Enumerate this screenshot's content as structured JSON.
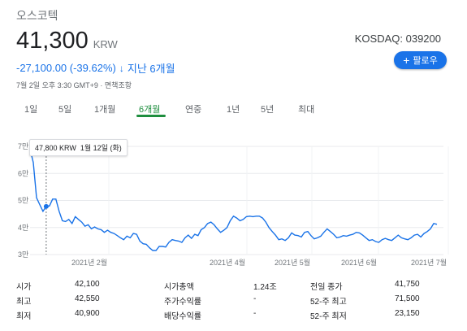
{
  "header": {
    "company": "오스코텍",
    "price": "41,300",
    "currency": "KRW",
    "exchange": "KOSDAQ: 039200",
    "change": "-27,100.00 (-39.62%)",
    "change_arrow": "↓",
    "change_period": "지난 6개월",
    "timestamp": "7월 2일 오후 3:30 GMT+9 · 면책조항",
    "follow_label": "팔로우",
    "follow_icon": "plus-icon"
  },
  "tabs": [
    {
      "label": "1일"
    },
    {
      "label": "5일"
    },
    {
      "label": "1개월"
    },
    {
      "label": "6개월",
      "active": true
    },
    {
      "label": "연중"
    },
    {
      "label": "1년"
    },
    {
      "label": "5년"
    },
    {
      "label": "최대"
    }
  ],
  "tooltip": {
    "value": "47,800 KRW",
    "date": "1월 12일 (화)"
  },
  "chart_data": {
    "type": "line",
    "ylim": [
      3,
      7
    ],
    "y_unit": "만",
    "y_ticks": [
      "3만",
      "4만",
      "5만",
      "6만",
      "7만"
    ],
    "x_ticks": [
      "2021년 2월",
      "2021년 4월",
      "2021년 5월",
      "2021년 6월",
      "2021년 7월"
    ],
    "y": [
      6.9,
      6.4,
      5.1,
      4.85,
      4.6,
      4.78,
      4.8,
      5.05,
      5.05,
      4.6,
      4.25,
      4.22,
      4.3,
      4.15,
      4.4,
      4.3,
      4.2,
      4.05,
      4.1,
      3.95,
      4.02,
      3.95,
      3.92,
      3.82,
      3.9,
      3.82,
      3.78,
      3.7,
      3.62,
      3.55,
      3.68,
      3.62,
      3.78,
      3.75,
      3.5,
      3.4,
      3.38,
      3.25,
      3.15,
      3.15,
      3.3,
      3.3,
      3.28,
      3.45,
      3.55,
      3.52,
      3.5,
      3.45,
      3.62,
      3.72,
      3.6,
      3.75,
      3.7,
      3.92,
      4.0,
      4.15,
      4.2,
      4.1,
      3.95,
      3.82,
      3.9,
      4.0,
      4.25,
      4.42,
      4.35,
      4.25,
      4.3,
      4.4,
      4.42,
      4.4,
      4.42,
      4.42,
      4.35,
      4.2,
      4.0,
      3.85,
      3.72,
      3.55,
      3.58,
      3.52,
      3.62,
      3.8,
      3.72,
      3.7,
      3.65,
      3.82,
      3.85,
      3.7,
      3.58,
      3.62,
      3.68,
      3.82,
      3.95,
      3.85,
      3.75,
      3.62,
      3.65,
      3.7,
      3.68,
      3.72,
      3.75,
      3.82,
      3.8,
      3.72,
      3.62,
      3.52,
      3.55,
      3.48,
      3.45,
      3.55,
      3.6,
      3.55,
      3.52,
      3.62,
      3.72,
      3.62,
      3.58,
      3.55,
      3.62,
      3.72,
      3.75,
      3.65,
      3.78,
      3.85,
      3.95,
      4.15,
      4.12
    ]
  },
  "stats": [
    {
      "l1": "시가",
      "v1": "42,100",
      "l2": "시가총액",
      "v2": "1.24조",
      "l3": "전일 종가",
      "v3": "41,750"
    },
    {
      "l1": "최고",
      "v1": "42,550",
      "l2": "주가수익률",
      "v2": "-",
      "l3": "52-주 최고",
      "v3": "71,500"
    },
    {
      "l1": "최저",
      "v1": "40,900",
      "l2": "배당수익률",
      "v2": "-",
      "l3": "52-주 최저",
      "v3": "23,150"
    }
  ],
  "colors": {
    "line": "#1a73e8",
    "accent": "#1a73e8",
    "active_tab": "#1e8e3e",
    "grid": "#e8eaed"
  }
}
